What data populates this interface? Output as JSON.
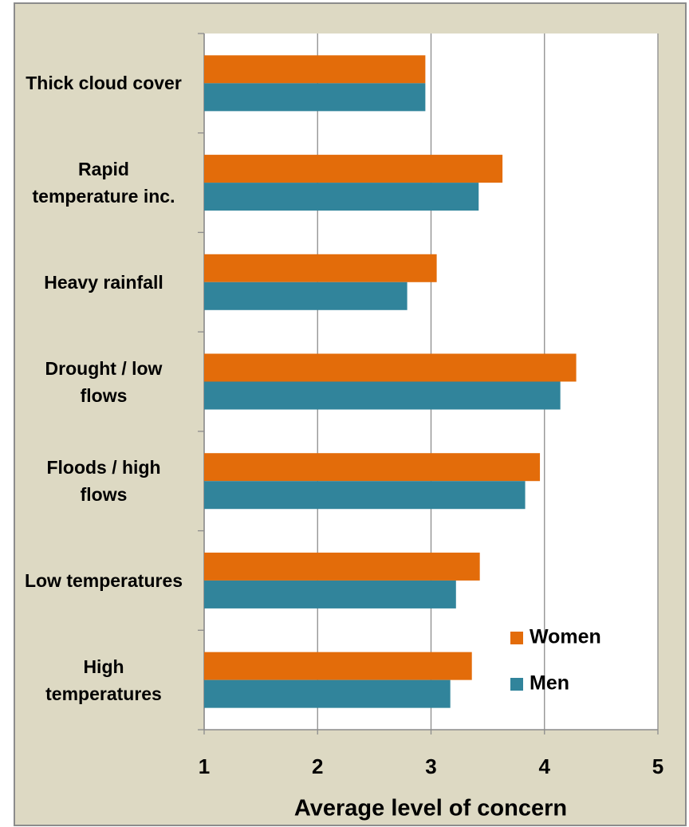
{
  "chart_data": {
    "type": "bar",
    "orientation": "horizontal",
    "x_label": "Average level of concern",
    "categories": [
      "Thick cloud cover",
      "Rapid temperature inc.",
      "Heavy rainfall",
      "Drought / low flows",
      "Floods / high flows",
      "Low temperatures",
      "High temperatures"
    ],
    "series": [
      {
        "name": "Women",
        "color": "#e36c0a",
        "values": [
          2.95,
          3.63,
          3.05,
          4.28,
          3.96,
          3.43,
          3.36
        ]
      },
      {
        "name": "Men",
        "color": "#31849b",
        "values": [
          2.95,
          3.42,
          2.79,
          4.14,
          3.83,
          3.22,
          3.17
        ]
      }
    ],
    "xlim": [
      1,
      5
    ],
    "xticks": [
      1,
      2,
      3,
      4,
      5
    ],
    "grid": true,
    "legend": "lower right"
  }
}
